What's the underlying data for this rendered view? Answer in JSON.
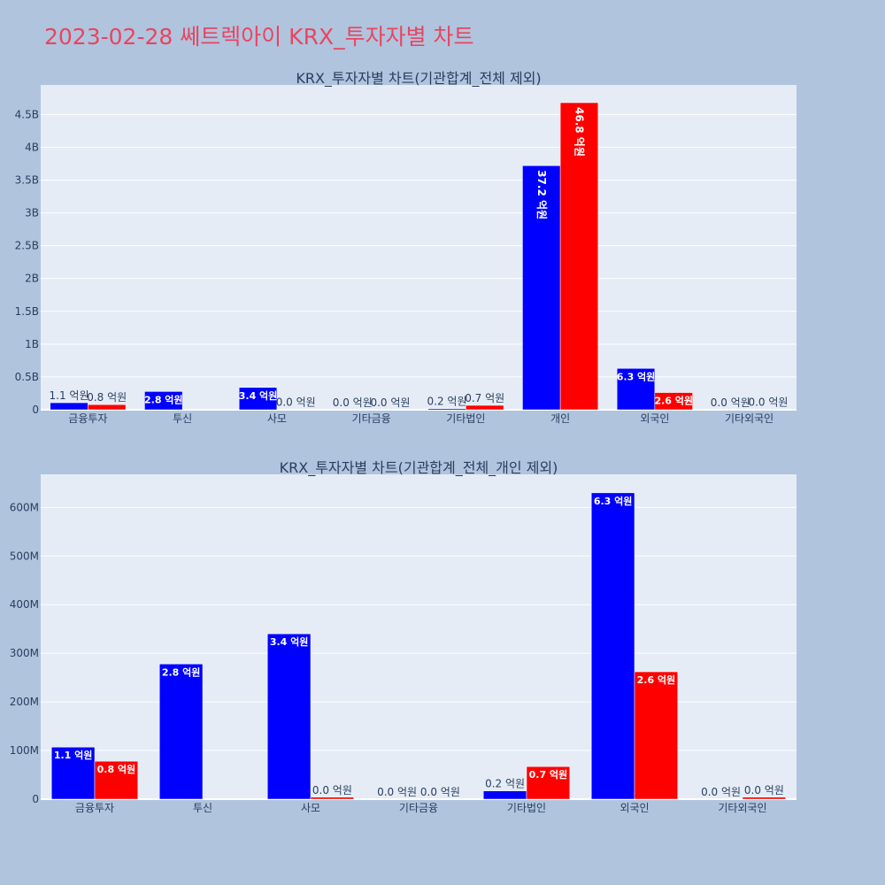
{
  "title": "2023-02-28 쎄트렉아이 KRX_투자자별 차트",
  "colors": {
    "background": "#b0c4de",
    "plot_bg": "#e5ecf6",
    "title": "#e94560",
    "series_blue": "#0000ff",
    "series_red": "#ff0000"
  },
  "chart_data": [
    {
      "type": "bar",
      "title": "KRX_투자자별 차트(기관합계_전체 제외)",
      "categories": [
        "금융투자",
        "투신",
        "사모",
        "기타금융",
        "기타법인",
        "개인",
        "외국인",
        "기타외국인"
      ],
      "ylim": [
        0,
        4950000000
      ],
      "yticks": [
        0,
        500000000,
        1000000000,
        1500000000,
        2000000000,
        2500000000,
        3000000000,
        3500000000,
        4000000000,
        4500000000
      ],
      "yticklabels": [
        "0",
        "0.5B",
        "1B",
        "1.5B",
        "2B",
        "2.5B",
        "3B",
        "3.5B",
        "4B",
        "4.5B"
      ],
      "grid": true,
      "series": [
        {
          "color": "#0000ff",
          "values": [
            107000000,
            278000000,
            340000000,
            0,
            17000000,
            3720000000,
            630000000,
            0
          ],
          "labels": [
            "1.1 억원",
            "2.8 억원",
            "3.4 억원",
            "0.0 억원",
            "0.2 억원",
            "37.2 억원",
            "6.3 억원",
            "0.0 억원"
          ]
        },
        {
          "color": "#ff0000",
          "values": [
            78000000,
            0,
            4000000,
            0,
            67000000,
            4680000000,
            262000000,
            4000000
          ],
          "labels": [
            "0.8 억원",
            "",
            "0.0 억원",
            "0.0 억원",
            "0.7 억원",
            "46.8 억원",
            "2.6 억원",
            "0.0 억원"
          ]
        }
      ]
    },
    {
      "type": "bar",
      "title": "KRX_투자자별 차트(기관합계_전체_개인 제외)",
      "categories": [
        "금융투자",
        "투신",
        "사모",
        "기타금융",
        "기타법인",
        "외국인",
        "기타외국인"
      ],
      "ylim": [
        0,
        668000000
      ],
      "yticks": [
        0,
        100000000,
        200000000,
        300000000,
        400000000,
        500000000,
        600000000
      ],
      "yticklabels": [
        "0",
        "100M",
        "200M",
        "300M",
        "400M",
        "500M",
        "600M"
      ],
      "grid": true,
      "series": [
        {
          "color": "#0000ff",
          "values": [
            107000000,
            278000000,
            340000000,
            0,
            17000000,
            630000000,
            0
          ],
          "labels": [
            "1.1 억원",
            "2.8 억원",
            "3.4 억원",
            "0.0 억원",
            "0.2 억원",
            "6.3 억원",
            "0.0 억원"
          ]
        },
        {
          "color": "#ff0000",
          "values": [
            78000000,
            0,
            4000000,
            0,
            67000000,
            262000000,
            4000000
          ],
          "labels": [
            "0.8 억원",
            "",
            "0.0 억원",
            "0.0 억원",
            "0.7 억원",
            "2.6 억원",
            "0.0 억원"
          ]
        }
      ]
    }
  ]
}
